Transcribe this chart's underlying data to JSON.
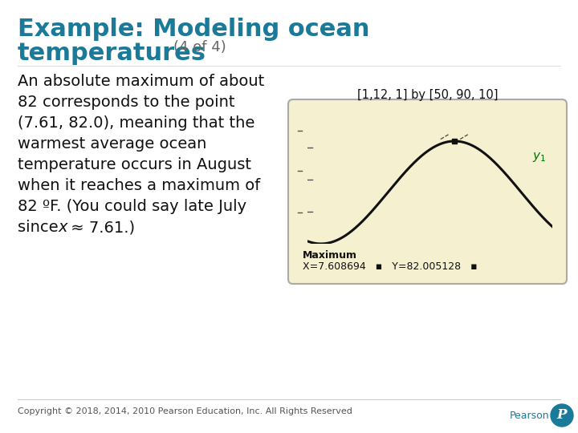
{
  "title_line1": "Example: Modeling ocean",
  "title_line2": "temperatures",
  "title_suffix": "(4 of 4)",
  "title_color": "#1a7a9a",
  "title_suffix_color": "#666666",
  "body_text_lines": [
    "An absolute maximum of about",
    "82 corresponds to the point",
    "(7.61, 82.0), meaning that the",
    "warmest average ocean",
    "temperature occurs in August",
    "when it reaches a maximum of",
    "82 ºF. (You could say late July",
    "since x ≈ 7.61.)"
  ],
  "graph_label": "[1,12, 1] by [50, 90, 10]",
  "graph_bg_color": "#f5f0d0",
  "graph_border_color": "#aaaaaa",
  "curve_color": "#111111",
  "marker_x": 7.608694,
  "marker_y": 82.005128,
  "xmin": 1,
  "xmax": 12,
  "ymin": 50,
  "ymax": 90,
  "y1_color": "#007700",
  "copyright_text": "Copyright © 2018, 2014, 2010 Pearson Education, Inc. All Rights Reserved",
  "bg_color": "#ffffff",
  "footer_color": "#555555",
  "pearson_color": "#1a7a9a"
}
